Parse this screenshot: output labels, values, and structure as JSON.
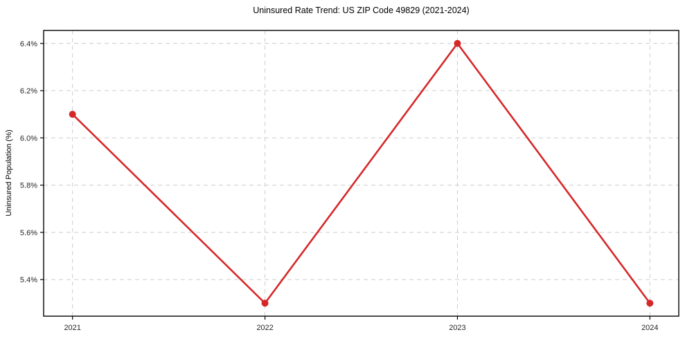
{
  "chart_data": {
    "type": "line",
    "title": "Uninsured Rate Trend: US ZIP Code 49829 (2021-2024)",
    "xlabel": "",
    "ylabel": "Uninsured Population (%)",
    "categories": [
      "2021",
      "2022",
      "2023",
      "2024"
    ],
    "x": [
      2021,
      2022,
      2023,
      2024
    ],
    "values": [
      6.1,
      5.3,
      6.4,
      5.3
    ],
    "xlim": [
      2020.85,
      2024.15
    ],
    "ylim": [
      5.245,
      6.455
    ],
    "xticks": {
      "values": [
        2021,
        2022,
        2023,
        2024
      ],
      "labels": [
        "2021",
        "2022",
        "2023",
        "2024"
      ]
    },
    "yticks": {
      "values": [
        5.4,
        5.6,
        5.8,
        6.0,
        6.2,
        6.4
      ],
      "labels": [
        "5.4%",
        "5.6%",
        "5.8%",
        "6.0%",
        "6.2%",
        "6.4%"
      ]
    },
    "grid": true,
    "grid_style": "dashed",
    "legend": "none",
    "colors": {
      "line": "#d62728",
      "marker": "#d62728",
      "grid": "#cccccc",
      "axis": "#000000",
      "tick_text": "#262626"
    }
  }
}
